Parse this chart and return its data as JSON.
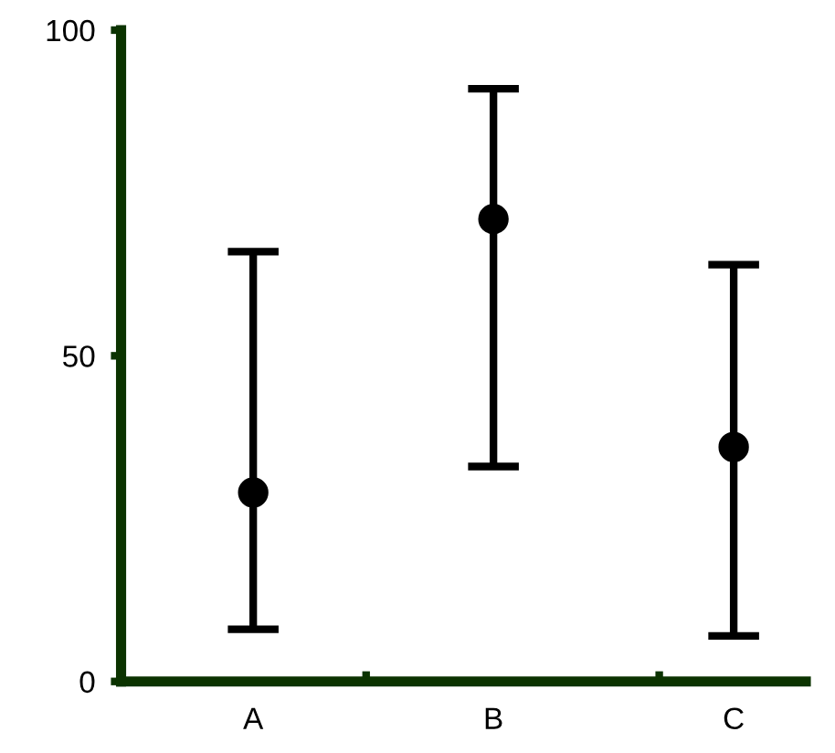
{
  "chart_data": {
    "type": "scatter",
    "categories": [
      "A",
      "B",
      "C"
    ],
    "values": [
      29,
      71,
      36
    ],
    "errors": [
      [
        8,
        66
      ],
      [
        33,
        91
      ],
      [
        7,
        64
      ]
    ],
    "color": "#000000",
    "marker": "circle",
    "ylim": [
      0,
      100
    ],
    "yticks": [
      0,
      50,
      100
    ],
    "grid": false
  }
}
